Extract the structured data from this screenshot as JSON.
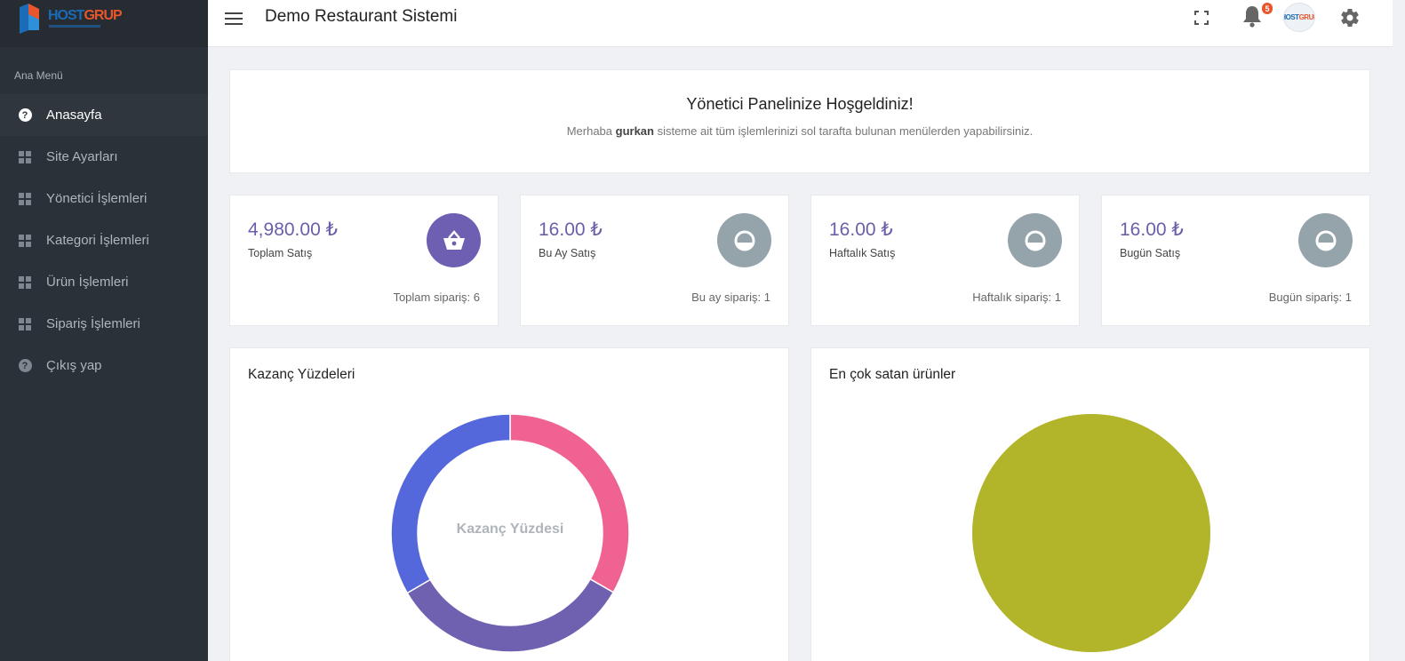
{
  "brand": {
    "logo_text_a": "HOST",
    "logo_text_b": "GRUP"
  },
  "sidebar": {
    "section_title": "Ana Menü",
    "items": [
      {
        "label": "Anasayfa",
        "icon": "question-circle-icon",
        "active": true
      },
      {
        "label": "Site Ayarları",
        "icon": "dashboard-grid-icon",
        "active": false
      },
      {
        "label": "Yönetici İşlemleri",
        "icon": "dashboard-grid-icon",
        "active": false
      },
      {
        "label": "Kategori İşlemleri",
        "icon": "dashboard-grid-icon",
        "active": false
      },
      {
        "label": "Ürün İşlemleri",
        "icon": "dashboard-grid-icon",
        "active": false
      },
      {
        "label": "Sipariş İşlemleri",
        "icon": "dashboard-grid-icon",
        "active": false
      },
      {
        "label": "Çıkış yap",
        "icon": "question-circle-icon",
        "active": false
      }
    ]
  },
  "header": {
    "title": "Demo Restaurant Sistemi",
    "notification_count": "5"
  },
  "welcome": {
    "heading": "Yönetici Panelinize Hoşgeldiniz!",
    "text_before": "Merhaba ",
    "username": "gurkan",
    "text_after": " sisteme ait tüm işlemlerinizi sol tarafta bulunan menülerden yapabilirsiniz."
  },
  "stats": [
    {
      "amount": "4,980.00 ₺",
      "label": "Toplam Satış",
      "footer": "Toplam sipariş: 6",
      "icon": "basket-icon",
      "color": "#6f5fb3"
    },
    {
      "amount": "16.00 ₺",
      "label": "Bu Ay Satış",
      "footer": "Bu ay sipariş: 1",
      "icon": "timer-icon",
      "color": "#95a3ab"
    },
    {
      "amount": "16.00 ₺",
      "label": "Haftalık Satış",
      "footer": "Haftalık sipariş: 1",
      "icon": "timer-icon",
      "color": "#95a3ab"
    },
    {
      "amount": "16.00 ₺",
      "label": "Bugün Satış",
      "footer": "Bugün sipariş: 1",
      "icon": "timer-icon",
      "color": "#95a3ab"
    }
  ],
  "charts": {
    "earnings_title": "Kazanç Yüzdeleri",
    "earnings_center_label": "Kazanç Yüzdesi",
    "top_products_title": "En çok satan ürünler"
  },
  "chart_data": [
    {
      "type": "pie",
      "variant": "doughnut",
      "title": "Kazanç Yüzdeleri",
      "center_label": "Kazanç Yüzdesi",
      "values": [
        33.3,
        33.3,
        33.4
      ],
      "colors": [
        "#f06292",
        "#7060b0",
        "#5468dc"
      ]
    },
    {
      "type": "pie",
      "title": "En çok satan ürünler",
      "values": [
        100
      ],
      "colors": [
        "#b2b42a"
      ]
    }
  ]
}
